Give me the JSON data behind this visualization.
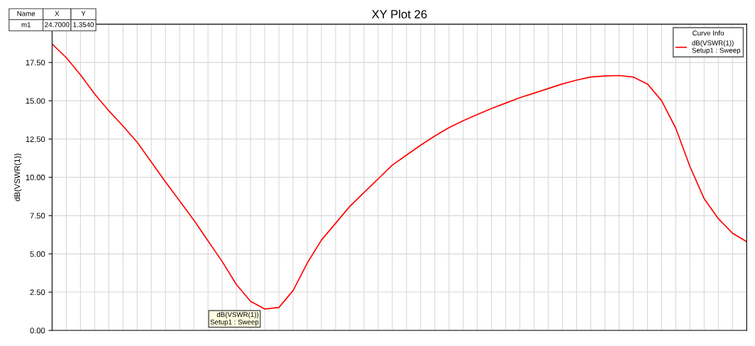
{
  "chart_data": {
    "type": "line",
    "title": "XY Plot 26",
    "ylabel": "dB(VSWR(1))",
    "legend_title": "Curve Info",
    "annotations": [
      "Name",
      "X",
      "Y",
      "m1",
      "24.7000",
      "1.3540",
      "dB(VSWR(1))\nSetup1 : Sweep"
    ],
    "categories": [
      null,
      null,
      null,
      null,
      null,
      null,
      null,
      null,
      null,
      null,
      null,
      null,
      null,
      null,
      null,
      null,
      null,
      null,
      null,
      null,
      null,
      null,
      null,
      null,
      null,
      null,
      null,
      null,
      null,
      null,
      null,
      null,
      null,
      null,
      null,
      null,
      null,
      null,
      null,
      null,
      null,
      null,
      null,
      null,
      null,
      null,
      null,
      null,
      null,
      null
    ],
    "series": [
      {
        "name": "dB(VSWR(1))\nSetup1 : Sweep",
        "color": "#ff0000",
        "values": [
          18.71,
          17.82,
          16.7,
          15.45,
          14.35,
          13.35,
          12.3,
          11.0,
          9.7,
          8.45,
          7.2,
          5.85,
          4.5,
          3.0,
          1.9,
          1.4,
          1.5,
          2.6,
          4.4,
          5.9,
          7.0,
          8.1,
          9.0,
          9.9,
          10.8,
          11.45,
          12.1,
          12.7,
          13.25,
          13.7,
          14.1,
          14.5,
          14.85,
          15.2,
          15.5,
          15.8,
          16.1,
          16.35,
          16.55,
          16.62,
          16.65,
          16.55,
          16.1,
          15.0,
          13.2,
          10.7,
          8.6,
          7.3,
          6.35,
          5.8
        ]
      }
    ],
    "ylim": [
      0,
      20
    ],
    "yticks": [
      {
        "value": 0,
        "label": "0.00"
      },
      {
        "value": 2.5,
        "label": "2.50"
      },
      {
        "value": 5,
        "label": "5.00"
      },
      {
        "value": 7.5,
        "label": "7.50"
      },
      {
        "value": 10,
        "label": "10.00"
      },
      {
        "value": 12.5,
        "label": "12.50"
      },
      {
        "value": 15,
        "label": "15.00"
      },
      {
        "value": 17.5,
        "label": "17.50"
      }
    ],
    "grid": true,
    "legend": "top right",
    "marker": "none",
    "line_style": "solid"
  }
}
